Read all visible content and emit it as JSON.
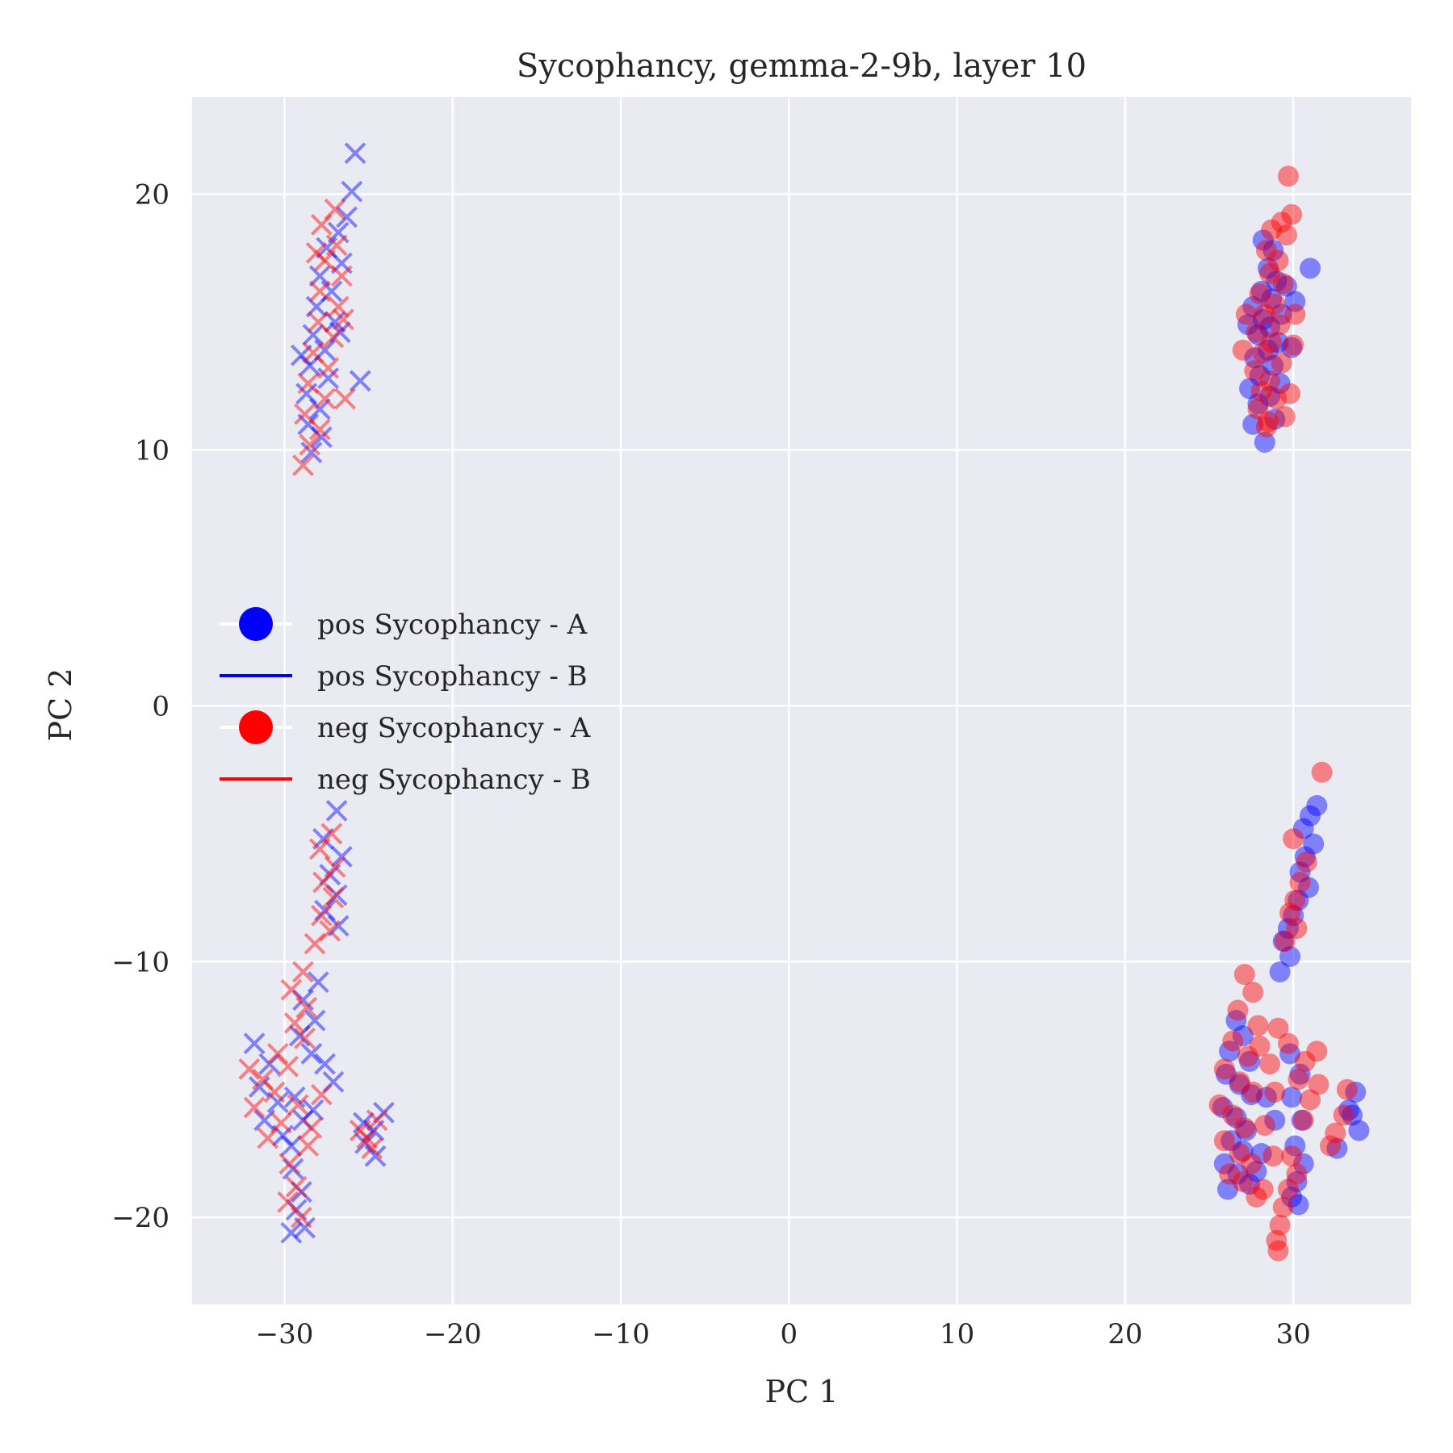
{
  "chart_data": {
    "type": "scatter",
    "title": "Sycophancy, gemma-2-9b, layer 10",
    "xlabel": "PC 1",
    "ylabel": "PC 2",
    "xlim": [
      -35.5,
      37.0
    ],
    "ylim": [
      -23.4,
      23.8
    ],
    "xticks": [
      -30,
      -20,
      -10,
      0,
      10,
      20,
      30
    ],
    "yticks": [
      -20,
      -10,
      0,
      10,
      20
    ],
    "xtick_labels": [
      "−30",
      "−20",
      "−10",
      "0",
      "10",
      "20",
      "30"
    ],
    "ytick_labels": [
      "−20",
      "−10",
      "0",
      "10",
      "20"
    ],
    "grid": true,
    "legend_position": "center-left",
    "colors": {
      "pos": "#0000ff",
      "neg": "#ff0000",
      "background": "#eaeaf2",
      "grid": "#ffffff"
    },
    "legend": [
      {
        "label": "pos Sycophancy - A",
        "marker": "circle",
        "color": "#0000ff"
      },
      {
        "label": "pos Sycophancy - B",
        "marker": "line",
        "color": "#0000ff"
      },
      {
        "label": "neg Sycophancy - A",
        "marker": "circle",
        "color": "#ff0000"
      },
      {
        "label": "neg Sycophancy - B",
        "marker": "line",
        "color": "#ff0000"
      }
    ],
    "series": [
      {
        "name": "pos Sycophancy - A",
        "marker": "circle",
        "color": "#0000ff",
        "points": [
          [
            28.3,
            10.3
          ],
          [
            27.6,
            11.0
          ],
          [
            28.9,
            11.2
          ],
          [
            27.9,
            11.8
          ],
          [
            28.6,
            12.1
          ],
          [
            27.4,
            12.4
          ],
          [
            29.2,
            12.6
          ],
          [
            28.0,
            12.9
          ],
          [
            28.8,
            13.3
          ],
          [
            27.7,
            13.6
          ],
          [
            28.5,
            13.9
          ],
          [
            29.1,
            14.2
          ],
          [
            27.9,
            14.5
          ],
          [
            28.6,
            14.8
          ],
          [
            28.2,
            15.1
          ],
          [
            29.3,
            15.3
          ],
          [
            27.6,
            15.6
          ],
          [
            28.7,
            15.9
          ],
          [
            28.1,
            16.2
          ],
          [
            29.0,
            16.6
          ],
          [
            28.5,
            17.1
          ],
          [
            31.0,
            17.1
          ],
          [
            28.8,
            17.8
          ],
          [
            28.2,
            18.2
          ],
          [
            30.1,
            15.8
          ],
          [
            29.9,
            14.0
          ],
          [
            27.3,
            14.9
          ],
          [
            29.6,
            16.4
          ],
          [
            31.4,
            -3.9
          ],
          [
            31.0,
            -4.3
          ],
          [
            30.6,
            -4.8
          ],
          [
            31.2,
            -5.4
          ],
          [
            30.7,
            -5.9
          ],
          [
            30.4,
            -6.5
          ],
          [
            30.9,
            -7.1
          ],
          [
            30.3,
            -7.6
          ],
          [
            30.0,
            -8.2
          ],
          [
            29.7,
            -8.7
          ],
          [
            29.4,
            -9.2
          ],
          [
            29.8,
            -9.8
          ],
          [
            29.2,
            -10.4
          ],
          [
            26.6,
            -12.3
          ],
          [
            27.0,
            -12.9
          ],
          [
            26.2,
            -13.5
          ],
          [
            27.4,
            -13.9
          ],
          [
            26.0,
            -14.4
          ],
          [
            26.8,
            -14.8
          ],
          [
            27.5,
            -15.2
          ],
          [
            25.8,
            -15.7
          ],
          [
            26.6,
            -16.1
          ],
          [
            27.2,
            -16.6
          ],
          [
            26.3,
            -17.0
          ],
          [
            27.0,
            -17.4
          ],
          [
            25.9,
            -17.9
          ],
          [
            26.7,
            -18.3
          ],
          [
            27.4,
            -18.7
          ],
          [
            26.1,
            -18.9
          ],
          [
            28.4,
            -15.3
          ],
          [
            28.9,
            -16.2
          ],
          [
            28.1,
            -17.5
          ],
          [
            27.8,
            -18.2
          ],
          [
            29.8,
            -13.6
          ],
          [
            30.4,
            -14.4
          ],
          [
            29.9,
            -15.3
          ],
          [
            30.5,
            -16.2
          ],
          [
            30.1,
            -17.2
          ],
          [
            30.6,
            -17.9
          ],
          [
            30.2,
            -18.6
          ],
          [
            29.9,
            -19.2
          ],
          [
            30.3,
            -19.5
          ],
          [
            33.7,
            -15.1
          ],
          [
            33.3,
            -15.8
          ],
          [
            33.9,
            -16.6
          ],
          [
            32.6,
            -17.3
          ],
          [
            33.5,
            -16.0
          ]
        ]
      },
      {
        "name": "neg Sycophancy - A",
        "marker": "circle",
        "color": "#ff0000",
        "points": [
          [
            29.7,
            20.7
          ],
          [
            29.9,
            19.2
          ],
          [
            29.3,
            18.9
          ],
          [
            28.7,
            18.6
          ],
          [
            29.6,
            18.4
          ],
          [
            28.4,
            17.8
          ],
          [
            29.1,
            17.4
          ],
          [
            28.6,
            16.9
          ],
          [
            29.4,
            16.5
          ],
          [
            28.0,
            16.1
          ],
          [
            28.9,
            15.7
          ],
          [
            28.3,
            15.3
          ],
          [
            29.2,
            14.9
          ],
          [
            27.8,
            14.6
          ],
          [
            28.7,
            14.2
          ],
          [
            28.2,
            13.8
          ],
          [
            29.3,
            13.4
          ],
          [
            27.7,
            13.1
          ],
          [
            28.6,
            12.7
          ],
          [
            28.1,
            12.3
          ],
          [
            29.0,
            12.0
          ],
          [
            27.9,
            11.6
          ],
          [
            28.5,
            11.1
          ],
          [
            29.5,
            11.3
          ],
          [
            30.1,
            15.3
          ],
          [
            29.8,
            12.2
          ],
          [
            27.2,
            15.3
          ],
          [
            27.0,
            13.9
          ],
          [
            30.0,
            14.1
          ],
          [
            28.4,
            10.9
          ],
          [
            31.7,
            -2.6
          ],
          [
            30.0,
            -5.2
          ],
          [
            30.8,
            -6.1
          ],
          [
            30.4,
            -6.9
          ],
          [
            30.1,
            -7.6
          ],
          [
            29.8,
            -8.1
          ],
          [
            30.2,
            -8.7
          ],
          [
            29.5,
            -9.2
          ],
          [
            27.1,
            -10.5
          ],
          [
            27.6,
            -11.2
          ],
          [
            26.7,
            -11.9
          ],
          [
            27.9,
            -12.5
          ],
          [
            26.4,
            -13.1
          ],
          [
            27.3,
            -13.7
          ],
          [
            25.9,
            -14.2
          ],
          [
            26.8,
            -14.7
          ],
          [
            27.6,
            -15.1
          ],
          [
            25.6,
            -15.6
          ],
          [
            26.4,
            -16.0
          ],
          [
            27.1,
            -16.5
          ],
          [
            25.9,
            -17.0
          ],
          [
            26.8,
            -17.5
          ],
          [
            27.5,
            -17.9
          ],
          [
            26.2,
            -18.3
          ],
          [
            27.0,
            -18.6
          ],
          [
            28.2,
            -18.9
          ],
          [
            27.8,
            -19.2
          ],
          [
            28.6,
            -14.0
          ],
          [
            28.9,
            -15.1
          ],
          [
            28.3,
            -16.4
          ],
          [
            28.8,
            -17.6
          ],
          [
            28.0,
            -13.3
          ],
          [
            29.1,
            -12.6
          ],
          [
            29.7,
            -13.2
          ],
          [
            30.7,
            -13.9
          ],
          [
            31.4,
            -13.5
          ],
          [
            30.3,
            -14.6
          ],
          [
            31.0,
            -15.4
          ],
          [
            31.5,
            -14.8
          ],
          [
            30.6,
            -16.2
          ],
          [
            29.9,
            -17.6
          ],
          [
            30.2,
            -18.3
          ],
          [
            29.7,
            -18.9
          ],
          [
            29.4,
            -19.6
          ],
          [
            29.2,
            -20.3
          ],
          [
            29.0,
            -20.9
          ],
          [
            29.1,
            -21.3
          ],
          [
            33.2,
            -15.0
          ],
          [
            33.0,
            -16.0
          ],
          [
            32.5,
            -16.7
          ],
          [
            32.2,
            -17.2
          ]
        ]
      },
      {
        "name": "pos Sycophancy - B",
        "marker": "x",
        "color": "#0000ff",
        "points": [
          [
            -25.8,
            21.6
          ],
          [
            -26.0,
            20.1
          ],
          [
            -26.3,
            19.1
          ],
          [
            -26.8,
            18.5
          ],
          [
            -27.5,
            17.9
          ],
          [
            -26.6,
            17.3
          ],
          [
            -27.9,
            16.8
          ],
          [
            -27.2,
            16.2
          ],
          [
            -28.1,
            15.6
          ],
          [
            -27.0,
            15.0
          ],
          [
            -28.3,
            14.5
          ],
          [
            -27.6,
            13.9
          ],
          [
            -28.5,
            13.3
          ],
          [
            -27.4,
            12.8
          ],
          [
            -28.7,
            12.2
          ],
          [
            -27.9,
            11.6
          ],
          [
            -28.6,
            11.0
          ],
          [
            -27.8,
            10.5
          ],
          [
            -28.4,
            9.9
          ],
          [
            -25.5,
            12.7
          ],
          [
            -26.7,
            14.6
          ],
          [
            -29.0,
            13.7
          ],
          [
            -26.9,
            -4.1
          ],
          [
            -27.7,
            -5.2
          ],
          [
            -26.6,
            -5.9
          ],
          [
            -27.3,
            -6.6
          ],
          [
            -26.9,
            -7.4
          ],
          [
            -27.6,
            -8.0
          ],
          [
            -26.8,
            -8.6
          ],
          [
            -28.0,
            -10.8
          ],
          [
            -28.9,
            -11.5
          ],
          [
            -28.2,
            -12.3
          ],
          [
            -29.1,
            -12.9
          ],
          [
            -28.4,
            -13.6
          ],
          [
            -31.8,
            -13.2
          ],
          [
            -30.9,
            -14.0
          ],
          [
            -31.5,
            -14.9
          ],
          [
            -30.4,
            -15.5
          ],
          [
            -31.2,
            -16.2
          ],
          [
            -30.1,
            -16.8
          ],
          [
            -29.4,
            -15.3
          ],
          [
            -28.9,
            -16.2
          ],
          [
            -27.6,
            -14.0
          ],
          [
            -27.1,
            -14.7
          ],
          [
            -28.3,
            -15.8
          ],
          [
            -29.6,
            -17.2
          ],
          [
            -29.5,
            -18.1
          ],
          [
            -29.0,
            -19.0
          ],
          [
            -29.3,
            -19.7
          ],
          [
            -28.8,
            -20.4
          ],
          [
            -29.6,
            -20.6
          ],
          [
            -24.1,
            -15.9
          ],
          [
            -24.7,
            -16.6
          ],
          [
            -25.2,
            -17.1
          ],
          [
            -24.6,
            -17.6
          ],
          [
            -25.3,
            -16.3
          ]
        ]
      },
      {
        "name": "neg Sycophancy - B",
        "marker": "x",
        "color": "#ff0000",
        "points": [
          [
            -27.0,
            19.4
          ],
          [
            -27.8,
            18.8
          ],
          [
            -26.9,
            18.0
          ],
          [
            -27.6,
            17.4
          ],
          [
            -26.6,
            16.8
          ],
          [
            -27.9,
            16.2
          ],
          [
            -26.8,
            15.6
          ],
          [
            -28.0,
            15.0
          ],
          [
            -27.1,
            14.4
          ],
          [
            -28.3,
            13.8
          ],
          [
            -27.4,
            13.2
          ],
          [
            -28.6,
            12.6
          ],
          [
            -27.6,
            12.0
          ],
          [
            -28.8,
            11.4
          ],
          [
            -27.9,
            10.8
          ],
          [
            -28.5,
            10.2
          ],
          [
            -28.9,
            9.4
          ],
          [
            -26.4,
            12.0
          ],
          [
            -28.1,
            17.7
          ],
          [
            -26.5,
            15.1
          ],
          [
            -27.2,
            -5.0
          ],
          [
            -27.9,
            -5.6
          ],
          [
            -27.0,
            -6.3
          ],
          [
            -27.7,
            -6.9
          ],
          [
            -27.1,
            -7.5
          ],
          [
            -27.8,
            -8.2
          ],
          [
            -27.3,
            -8.8
          ],
          [
            -28.2,
            -9.3
          ],
          [
            -28.9,
            -10.4
          ],
          [
            -29.6,
            -11.1
          ],
          [
            -28.7,
            -11.8
          ],
          [
            -29.4,
            -12.4
          ],
          [
            -28.8,
            -13.0
          ],
          [
            -32.1,
            -14.2
          ],
          [
            -31.3,
            -14.6
          ],
          [
            -30.6,
            -15.1
          ],
          [
            -31.8,
            -15.7
          ],
          [
            -30.2,
            -16.3
          ],
          [
            -31.0,
            -16.9
          ],
          [
            -29.8,
            -14.1
          ],
          [
            -29.2,
            -15.6
          ],
          [
            -28.4,
            -16.5
          ],
          [
            -27.8,
            -15.2
          ],
          [
            -30.4,
            -13.6
          ],
          [
            -28.6,
            -17.2
          ],
          [
            -29.7,
            -17.9
          ],
          [
            -29.3,
            -18.8
          ],
          [
            -29.8,
            -19.4
          ],
          [
            -29.0,
            -20.0
          ],
          [
            -24.5,
            -16.2
          ],
          [
            -25.1,
            -16.9
          ],
          [
            -24.8,
            -17.3
          ],
          [
            -25.5,
            -16.6
          ]
        ]
      }
    ]
  }
}
